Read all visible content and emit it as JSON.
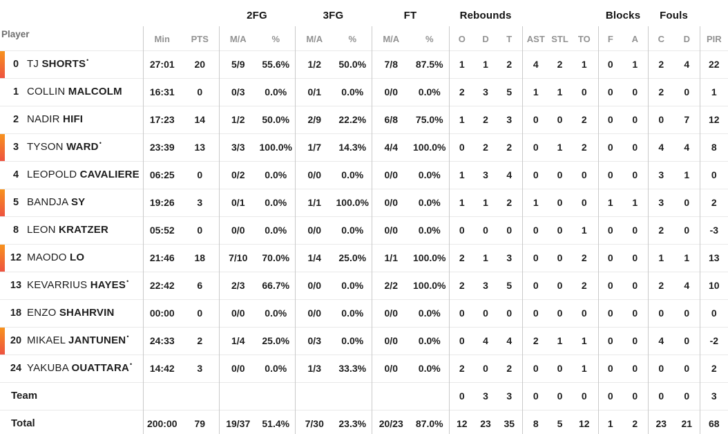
{
  "table": {
    "player_header": "Player",
    "groups": [
      {
        "label": "2FG"
      },
      {
        "label": "3FG"
      },
      {
        "label": "FT"
      },
      {
        "label": "Rebounds"
      },
      {
        "label": "Blocks"
      },
      {
        "label": "Fouls"
      }
    ],
    "columns": [
      "Min",
      "PTS",
      "M/A",
      "%",
      "M/A",
      "%",
      "M/A",
      "%",
      "O",
      "D",
      "T",
      "AST",
      "STL",
      "TO",
      "F",
      "A",
      "C",
      "D",
      "PIR"
    ],
    "on_court_indicator_colors": {
      "top": "#f7921e",
      "bottom": "#ee5340"
    },
    "rows": [
      {
        "num": "0",
        "first": "TJ",
        "last": "SHORTS",
        "starter_mark": "•",
        "on_court": true,
        "stats": [
          "27:01",
          "20",
          "5/9",
          "55.6%",
          "1/2",
          "50.0%",
          "7/8",
          "87.5%",
          "1",
          "1",
          "2",
          "4",
          "2",
          "1",
          "0",
          "1",
          "2",
          "4",
          "22"
        ]
      },
      {
        "num": "1",
        "first": "COLLIN",
        "last": "MALCOLM",
        "starter_mark": "",
        "on_court": false,
        "stats": [
          "16:31",
          "0",
          "0/3",
          "0.0%",
          "0/1",
          "0.0%",
          "0/0",
          "0.0%",
          "2",
          "3",
          "5",
          "1",
          "1",
          "0",
          "0",
          "0",
          "2",
          "0",
          "1"
        ]
      },
      {
        "num": "2",
        "first": "NADIR",
        "last": "HIFI",
        "starter_mark": "",
        "on_court": false,
        "stats": [
          "17:23",
          "14",
          "1/2",
          "50.0%",
          "2/9",
          "22.2%",
          "6/8",
          "75.0%",
          "1",
          "2",
          "3",
          "0",
          "0",
          "2",
          "0",
          "0",
          "0",
          "7",
          "12"
        ]
      },
      {
        "num": "3",
        "first": "TYSON",
        "last": "WARD",
        "starter_mark": "•",
        "on_court": true,
        "stats": [
          "23:39",
          "13",
          "3/3",
          "100.0%",
          "1/7",
          "14.3%",
          "4/4",
          "100.0%",
          "0",
          "2",
          "2",
          "0",
          "1",
          "2",
          "0",
          "0",
          "4",
          "4",
          "8"
        ]
      },
      {
        "num": "4",
        "first": "LEOPOLD",
        "last": "CAVALIERE",
        "starter_mark": "",
        "on_court": false,
        "stats": [
          "06:25",
          "0",
          "0/2",
          "0.0%",
          "0/0",
          "0.0%",
          "0/0",
          "0.0%",
          "1",
          "3",
          "4",
          "0",
          "0",
          "0",
          "0",
          "0",
          "3",
          "1",
          "0"
        ]
      },
      {
        "num": "5",
        "first": "BANDJA",
        "last": "SY",
        "starter_mark": "",
        "on_court": true,
        "stats": [
          "19:26",
          "3",
          "0/1",
          "0.0%",
          "1/1",
          "100.0%",
          "0/0",
          "0.0%",
          "1",
          "1",
          "2",
          "1",
          "0",
          "0",
          "1",
          "1",
          "3",
          "0",
          "2"
        ]
      },
      {
        "num": "8",
        "first": "LEON",
        "last": "KRATZER",
        "starter_mark": "",
        "on_court": false,
        "stats": [
          "05:52",
          "0",
          "0/0",
          "0.0%",
          "0/0",
          "0.0%",
          "0/0",
          "0.0%",
          "0",
          "0",
          "0",
          "0",
          "0",
          "1",
          "0",
          "0",
          "2",
          "0",
          "-3"
        ]
      },
      {
        "num": "12",
        "first": "MAODO",
        "last": "LO",
        "starter_mark": "",
        "on_court": true,
        "stats": [
          "21:46",
          "18",
          "7/10",
          "70.0%",
          "1/4",
          "25.0%",
          "1/1",
          "100.0%",
          "2",
          "1",
          "3",
          "0",
          "0",
          "2",
          "0",
          "0",
          "1",
          "1",
          "13"
        ]
      },
      {
        "num": "13",
        "first": "KEVARRIUS",
        "last": "HAYES",
        "starter_mark": "•",
        "on_court": false,
        "stats": [
          "22:42",
          "6",
          "2/3",
          "66.7%",
          "0/0",
          "0.0%",
          "2/2",
          "100.0%",
          "2",
          "3",
          "5",
          "0",
          "0",
          "2",
          "0",
          "0",
          "2",
          "4",
          "10"
        ]
      },
      {
        "num": "18",
        "first": "ENZO",
        "last": "SHAHRVIN",
        "starter_mark": "",
        "on_court": false,
        "stats": [
          "00:00",
          "0",
          "0/0",
          "0.0%",
          "0/0",
          "0.0%",
          "0/0",
          "0.0%",
          "0",
          "0",
          "0",
          "0",
          "0",
          "0",
          "0",
          "0",
          "0",
          "0",
          "0"
        ]
      },
      {
        "num": "20",
        "first": "MIKAEL",
        "last": "JANTUNEN",
        "starter_mark": "•",
        "on_court": true,
        "stats": [
          "24:33",
          "2",
          "1/4",
          "25.0%",
          "0/3",
          "0.0%",
          "0/0",
          "0.0%",
          "0",
          "4",
          "4",
          "2",
          "1",
          "1",
          "0",
          "0",
          "4",
          "0",
          "-2"
        ]
      },
      {
        "num": "24",
        "first": "YAKUBA",
        "last": "OUATTARA",
        "starter_mark": "•",
        "on_court": false,
        "stats": [
          "14:42",
          "3",
          "0/0",
          "0.0%",
          "1/3",
          "33.3%",
          "0/0",
          "0.0%",
          "2",
          "0",
          "2",
          "0",
          "0",
          "1",
          "0",
          "0",
          "0",
          "0",
          "2"
        ]
      },
      {
        "label": "Team",
        "stats": [
          "",
          "",
          "",
          "",
          "",
          "",
          "",
          "",
          "0",
          "3",
          "3",
          "0",
          "0",
          "0",
          "0",
          "0",
          "0",
          "0",
          "3"
        ]
      },
      {
        "label": "Total",
        "stats": [
          "200:00",
          "79",
          "19/37",
          "51.4%",
          "7/30",
          "23.3%",
          "20/23",
          "87.0%",
          "12",
          "23",
          "35",
          "8",
          "5",
          "12",
          "1",
          "2",
          "23",
          "21",
          "68"
        ]
      }
    ]
  },
  "colors": {
    "text": "#1c1c1c",
    "sub_header_gray": "#929292",
    "player_header_gray": "#6e6e6e",
    "column_divider": "#c9c9c9",
    "row_divider": "#e9e9e9",
    "accent_gradient_top": "#f7921e",
    "accent_gradient_bottom": "#ee5340"
  }
}
